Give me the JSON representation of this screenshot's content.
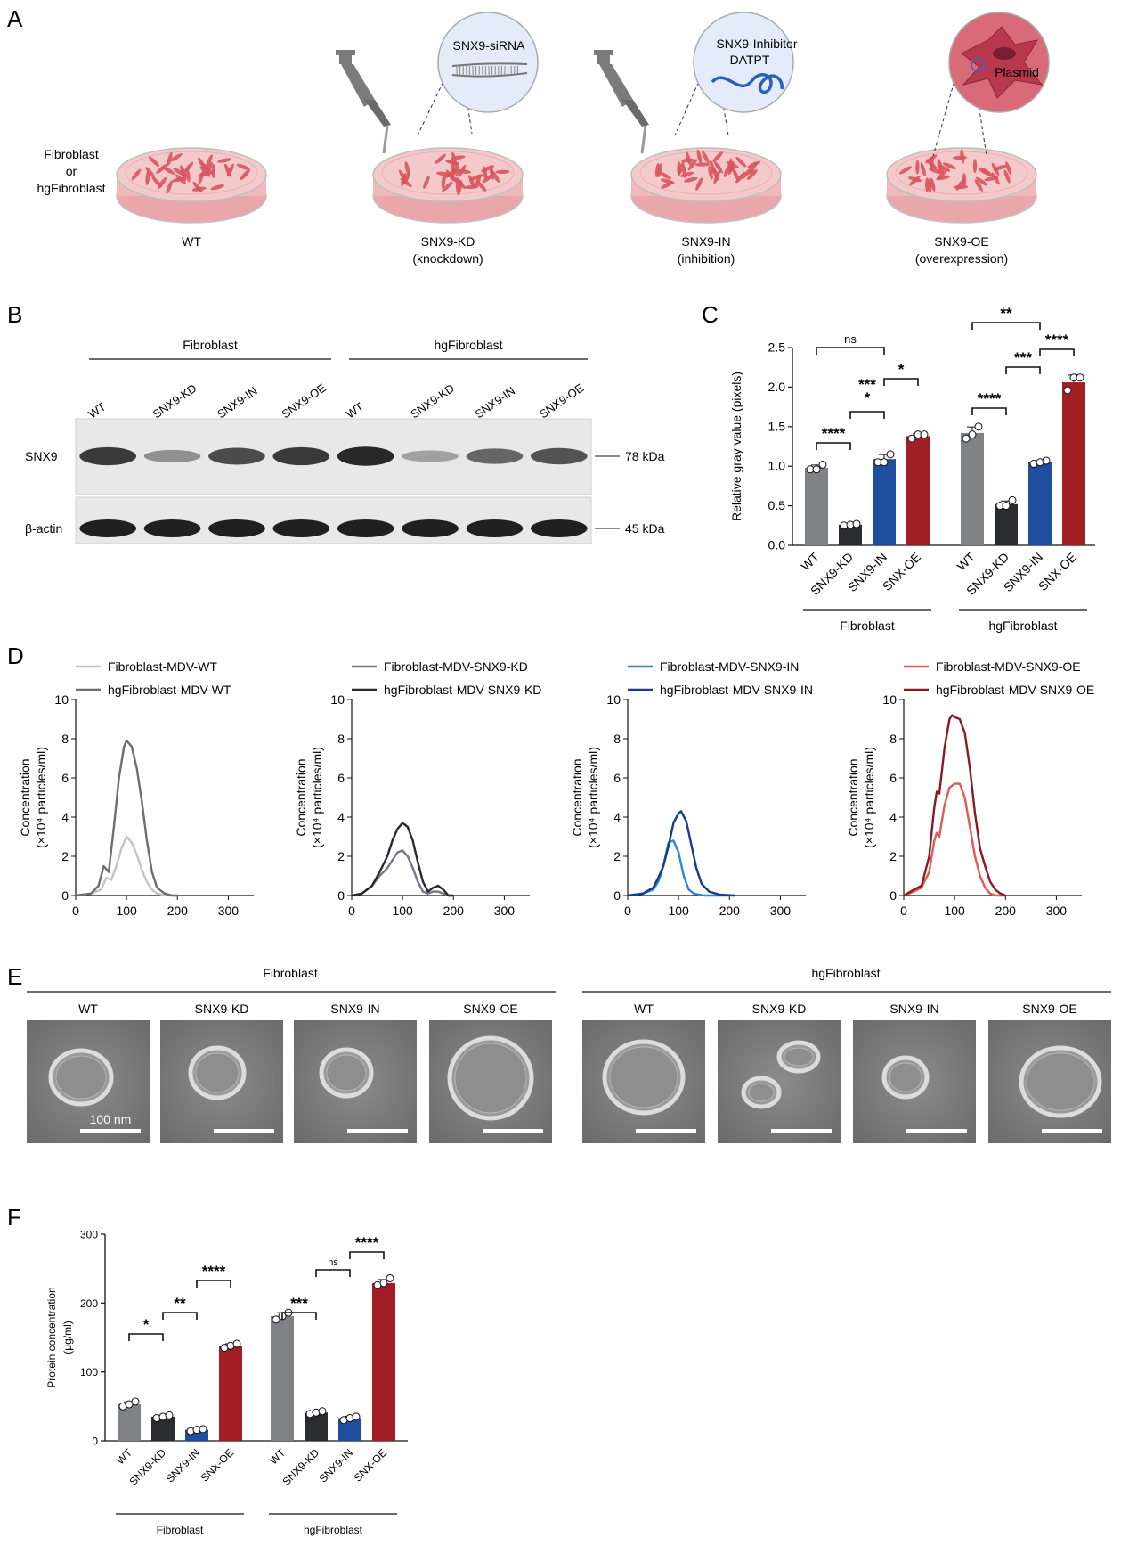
{
  "panel_labels": [
    "A",
    "B",
    "C",
    "D",
    "E",
    "F"
  ],
  "panel_a": {
    "label_left": [
      "Fibroblast",
      "or",
      "hgFibroblast"
    ],
    "dishes": [
      {
        "caption": [
          "WT"
        ]
      },
      {
        "caption": [
          "SNX9-KD",
          "(knockdown)"
        ],
        "bubble": [
          "SNX9-siRNA"
        ]
      },
      {
        "caption": [
          "SNX9-IN",
          "(inhibition)"
        ],
        "bubble": [
          "SNX9-Inhibitor",
          "DATPT"
        ]
      },
      {
        "caption": [
          "SNX9-OE",
          "(overexpression)"
        ],
        "bubble": [
          "Plasmid"
        ]
      }
    ],
    "colors": {
      "dish_fill": "#f4c9c9",
      "cell": "#d9545f",
      "bubble": "#e3ecf8",
      "pipette": "#7b7b7b",
      "oe_cell": "#b8394d"
    }
  },
  "panel_b": {
    "groups": [
      "Fibroblast",
      "hgFibroblast"
    ],
    "lanes": [
      "WT",
      "SNX9-KD",
      "SNX9-IN",
      "SNX9-OE",
      "WT",
      "SNX9-KD",
      "SNX9-IN",
      "SNX9-OE"
    ],
    "rows": [
      {
        "name": "SNX9",
        "marker": "78 kDa",
        "intensity": [
          0.85,
          0.35,
          0.75,
          0.85,
          0.95,
          0.25,
          0.6,
          0.7
        ]
      },
      {
        "name": "β-actin",
        "marker": "45 kDa",
        "intensity": [
          1,
          1,
          1,
          1,
          1,
          1,
          1,
          1
        ]
      }
    ]
  },
  "chart_data": [
    {
      "type": "bar",
      "panel": "C",
      "ylabel": "Relative gray value (pixels)",
      "ylim": [
        0,
        2.5
      ],
      "yticks": [
        "0.0",
        "0.5",
        "1.0",
        "1.5",
        "2.0",
        "2.5"
      ],
      "groups": [
        "Fibroblast",
        "hgFibroblast"
      ],
      "categories": [
        "WT",
        "SNX9-KD",
        "SNX9-IN",
        "SNX-OE",
        "WT",
        "SNX9-KD",
        "SNX9-IN",
        "SNX-OE"
      ],
      "values": [
        0.98,
        0.26,
        1.09,
        1.38,
        1.42,
        0.52,
        1.05,
        2.06
      ],
      "points": [
        [
          0.96,
          0.96,
          1.02
        ],
        [
          0.25,
          0.26,
          0.27
        ],
        [
          1.05,
          1.05,
          1.15
        ],
        [
          1.35,
          1.4,
          1.4
        ],
        [
          1.35,
          1.4,
          1.5
        ],
        [
          0.5,
          0.5,
          0.57
        ],
        [
          1.03,
          1.05,
          1.07
        ],
        [
          1.96,
          2.12,
          2.12
        ]
      ],
      "colors": [
        "#808285",
        "#2b2c30",
        "#1f4e9e",
        "#a01e24",
        "#808285",
        "#2b2c30",
        "#1f4e9e",
        "#a01e24"
      ],
      "significance": [
        {
          "a": 0,
          "b": 1,
          "label": "****"
        },
        {
          "a": 1,
          "b": 2,
          "label": "***"
        },
        {
          "a": 1,
          "b": 2,
          "label": "*"
        },
        {
          "a": 2,
          "b": 3,
          "label": "*"
        },
        {
          "a": 0,
          "b": 2,
          "label": "ns"
        },
        {
          "a": 4,
          "b": 5,
          "label": "****"
        },
        {
          "a": 5,
          "b": 6,
          "label": "***"
        },
        {
          "a": 6,
          "b": 7,
          "label": "****"
        },
        {
          "a": 4,
          "b": 6,
          "label": "**"
        }
      ]
    },
    {
      "type": "line",
      "panel": "D1",
      "ylabel": [
        "Concentration",
        "(×10⁴ particles/ml)"
      ],
      "xlim": [
        0,
        350
      ],
      "ylim": [
        0,
        10
      ],
      "xticks": [
        "0",
        "100",
        "200",
        "300"
      ],
      "yticks": [
        "0",
        "2",
        "4",
        "6",
        "8",
        "10"
      ],
      "series": [
        {
          "name": "Fibroblast-MDV-WT",
          "color": "#c4c4c4",
          "x": [
            0,
            30,
            50,
            60,
            70,
            80,
            90,
            100,
            110,
            120,
            130,
            140,
            150,
            160,
            180,
            200
          ],
          "y": [
            0,
            0.1,
            0.3,
            0.9,
            0.8,
            1.5,
            2.4,
            3.0,
            2.7,
            2.1,
            1.3,
            0.7,
            0.3,
            0.1,
            0,
            0
          ]
        },
        {
          "name": "hgFibroblast-MDV-WT",
          "color": "#6d6d6d",
          "x": [
            0,
            30,
            45,
            55,
            65,
            75,
            85,
            95,
            100,
            110,
            120,
            130,
            140,
            150,
            160,
            175,
            190,
            200
          ],
          "y": [
            0,
            0.1,
            0.5,
            1.5,
            1.2,
            3.5,
            6.0,
            7.6,
            7.9,
            7.6,
            6.5,
            4.8,
            2.8,
            1.2,
            0.4,
            0.1,
            0,
            0
          ]
        }
      ]
    },
    {
      "type": "line",
      "panel": "D2",
      "ylabel": [
        "Concentration",
        "(×10⁴ particles/ml)"
      ],
      "xlim": [
        0,
        350
      ],
      "ylim": [
        0,
        10
      ],
      "xticks": [
        "0",
        "100",
        "200",
        "300"
      ],
      "yticks": [
        "0",
        "2",
        "4",
        "6",
        "8",
        "10"
      ],
      "series": [
        {
          "name": "Fibroblast-MDV-SNX9-KD",
          "color": "#7a7586",
          "x": [
            0,
            20,
            40,
            55,
            70,
            80,
            90,
            100,
            110,
            120,
            130,
            140,
            150,
            160,
            170,
            180,
            190,
            200
          ],
          "y": [
            0,
            0.1,
            0.5,
            1.0,
            1.4,
            1.8,
            2.2,
            2.3,
            2.0,
            1.4,
            0.7,
            0.2,
            0.1,
            0.2,
            0.2,
            0.1,
            0,
            0
          ]
        },
        {
          "name": "hgFibroblast-MDV-SNX9-KD",
          "color": "#2a2a2a",
          "x": [
            0,
            20,
            40,
            55,
            70,
            80,
            90,
            100,
            110,
            120,
            130,
            140,
            150,
            160,
            170,
            180,
            190,
            200
          ],
          "y": [
            0,
            0.1,
            0.5,
            1.2,
            2.0,
            2.8,
            3.4,
            3.7,
            3.5,
            2.8,
            1.7,
            0.7,
            0.2,
            0.4,
            0.5,
            0.3,
            0,
            0
          ]
        }
      ]
    },
    {
      "type": "line",
      "panel": "D3",
      "ylabel": [
        "Concentration",
        "(×10⁴ particles/ml)"
      ],
      "xlim": [
        0,
        350
      ],
      "ylim": [
        0,
        10
      ],
      "xticks": [
        "0",
        "100",
        "200",
        "300"
      ],
      "yticks": [
        "0",
        "2",
        "4",
        "6",
        "8",
        "10"
      ],
      "series": [
        {
          "name": "Fibroblast-MDV-SNX9-IN",
          "color": "#2e86de",
          "x": [
            0,
            30,
            50,
            60,
            70,
            80,
            90,
            100,
            110,
            120,
            130,
            150,
            180,
            210
          ],
          "y": [
            0,
            0.1,
            0.3,
            0.7,
            1.5,
            2.7,
            2.8,
            2.2,
            1.0,
            0.3,
            0.1,
            0,
            0,
            0
          ]
        },
        {
          "name": "hgFibroblast-MDV-SNX9-IN",
          "color": "#173c8a",
          "x": [
            0,
            30,
            50,
            60,
            70,
            80,
            90,
            100,
            105,
            115,
            125,
            135,
            145,
            160,
            180,
            210
          ],
          "y": [
            0,
            0.1,
            0.4,
            0.9,
            1.5,
            2.5,
            3.7,
            4.2,
            4.3,
            3.8,
            2.6,
            1.4,
            0.6,
            0.2,
            0.05,
            0
          ]
        }
      ]
    },
    {
      "type": "line",
      "panel": "D4",
      "ylabel": [
        "Concentration",
        "(×10⁴ particles/ml)"
      ],
      "xlim": [
        0,
        350
      ],
      "ylim": [
        0,
        10
      ],
      "xticks": [
        "0",
        "100",
        "200",
        "300"
      ],
      "yticks": [
        "0",
        "2",
        "4",
        "6",
        "8",
        "10"
      ],
      "series": [
        {
          "name": "Fibroblast-MDV-SNX9-OE",
          "color": "#e05a5a",
          "x": [
            0,
            20,
            35,
            50,
            60,
            65,
            70,
            80,
            90,
            100,
            110,
            120,
            130,
            140,
            150,
            160,
            170,
            180,
            200
          ],
          "y": [
            0,
            0.2,
            0.4,
            1.2,
            2.8,
            3.2,
            3.0,
            4.6,
            5.5,
            5.7,
            5.7,
            5.0,
            3.5,
            2.0,
            1.0,
            0.4,
            0.1,
            0,
            0
          ]
        },
        {
          "name": "hgFibroblast-MDV-SNX9-OE",
          "color": "#8b1a1f",
          "x": [
            0,
            20,
            35,
            50,
            60,
            65,
            70,
            80,
            90,
            95,
            100,
            110,
            120,
            130,
            140,
            150,
            160,
            170,
            180,
            190,
            200
          ],
          "y": [
            0,
            0.3,
            0.5,
            2.0,
            4.5,
            5.3,
            5.2,
            7.5,
            9.0,
            9.2,
            9.1,
            9.0,
            8.3,
            6.5,
            4.2,
            2.4,
            1.5,
            0.7,
            0.3,
            0.1,
            0
          ]
        }
      ]
    },
    {
      "type": "bar",
      "panel": "F",
      "ylabel": [
        "Protein concentration",
        "(μg/ml)"
      ],
      "ylim": [
        0,
        300
      ],
      "yticks": [
        "0",
        "100",
        "200",
        "300"
      ],
      "groups": [
        "Fibroblast",
        "hgFibroblast"
      ],
      "categories": [
        "WT",
        "SNX9-KD",
        "SNX9-IN",
        "SNX-OE",
        "WT",
        "SNX9-KD",
        "SNX9-IN",
        "SNX-OE"
      ],
      "values": [
        53,
        35,
        16,
        138,
        181,
        41,
        33,
        229
      ],
      "points": [
        [
          50,
          53,
          57
        ],
        [
          33,
          35,
          37
        ],
        [
          14,
          16,
          17
        ],
        [
          135,
          138,
          141
        ],
        [
          176,
          181,
          186
        ],
        [
          39,
          41,
          43
        ],
        [
          30,
          33,
          35
        ],
        [
          226,
          229,
          236
        ]
      ],
      "colors": [
        "#808285",
        "#2b2c30",
        "#1f4e9e",
        "#a01e24",
        "#808285",
        "#2b2c30",
        "#1f4e9e",
        "#a01e24"
      ],
      "significance": [
        {
          "a": 0,
          "b": 1,
          "label": "*"
        },
        {
          "a": 1,
          "b": 2,
          "label": "**"
        },
        {
          "a": 2,
          "b": 3,
          "label": "****"
        },
        {
          "a": 4,
          "b": 5,
          "label": "***"
        },
        {
          "a": 5,
          "b": 6,
          "label": "ns"
        },
        {
          "a": 6,
          "b": 7,
          "label": "****"
        }
      ]
    }
  ],
  "panel_e": {
    "groups": [
      "Fibroblast",
      "hgFibroblast"
    ],
    "images": [
      "WT",
      "SNX9-KD",
      "SNX9-IN",
      "SNX9-OE",
      "WT",
      "SNX9-KD",
      "SNX9-IN",
      "SNX9-OE"
    ],
    "scale_label": "100 nm"
  }
}
